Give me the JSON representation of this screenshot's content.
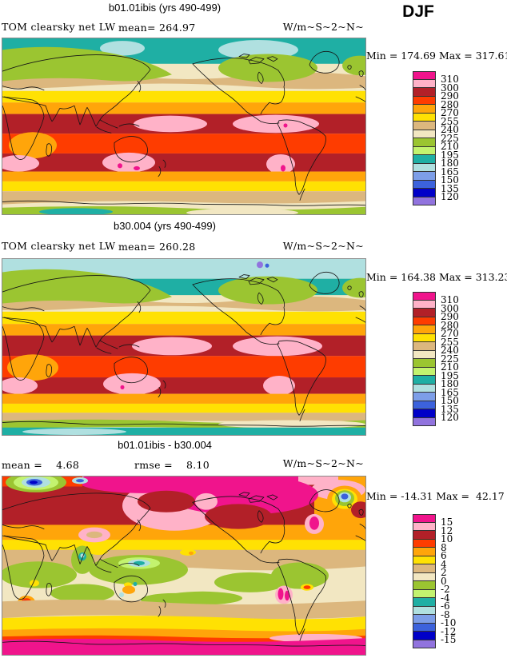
{
  "header": {
    "season": "DJF"
  },
  "palette_top_to_bottom": [
    "#F0148C",
    "#FFB2C8",
    "#B22028",
    "#FE3C00",
    "#FFA50A",
    "#FFE103",
    "#DCB77E",
    "#F2E7C2",
    "#9BC531",
    "#C3F36F",
    "#1FAFA4",
    "#B0E0E0",
    "#7D9EE8",
    "#3C62DC",
    "#0000C8",
    "#9173DE"
  ],
  "panels": [
    {
      "title": "b01.01ibis (yrs 490-499)",
      "field_label": "TOM clearsky net LW",
      "mean_label": "mean= 264.97",
      "units": "W/m~S~2~N~",
      "minmax": "Min = 174.69 Max = 317.61",
      "legend_labels": [
        "310",
        "300",
        "290",
        "280",
        "270",
        "255",
        "240",
        "225",
        "210",
        "195",
        "180",
        "165",
        "150",
        "135",
        "120"
      ]
    },
    {
      "title": "b30.004 (yrs 490-499)",
      "field_label": "TOM clearsky net LW",
      "mean_label": "mean= 260.28",
      "units": "W/m~S~2~N~",
      "minmax": "Min = 164.38 Max = 313.23",
      "legend_labels": [
        "310",
        "300",
        "290",
        "280",
        "270",
        "255",
        "240",
        "225",
        "210",
        "195",
        "180",
        "165",
        "150",
        "135",
        "120"
      ]
    },
    {
      "title": "b01.01ibis - b30.004",
      "mean_label": "mean =    4.68",
      "rmse_label": "rmse =    8.10",
      "units": "W/m~S~2~N~",
      "minmax": "Min = -14.31 Max =  42.17",
      "legend_labels": [
        "15",
        "12",
        "10",
        "8",
        "6",
        "4",
        "2",
        "0",
        "-2",
        "-4",
        "-6",
        "-8",
        "-10",
        "-12",
        "-15"
      ]
    }
  ],
  "chart_data": [
    {
      "type": "heatmap",
      "title": "b01.01ibis (yrs 490-499)",
      "subtitle": "TOM clearsky net LW",
      "season": "DJF",
      "units": "W/m^2",
      "projection": "global latitude-longitude map, 0E-360E",
      "mean": 264.97,
      "min": 174.69,
      "max": 317.61,
      "contour_levels": [
        120,
        135,
        150,
        165,
        180,
        195,
        210,
        225,
        240,
        255,
        270,
        280,
        290,
        300,
        310
      ],
      "palette_low_to_high": [
        "#9173DE",
        "#0000C8",
        "#3C62DC",
        "#7D9EE8",
        "#B0E0E0",
        "#1FAFA4",
        "#C3F36F",
        "#9BC531",
        "#F2E7C2",
        "#DCB77E",
        "#FFE103",
        "#FFA50A",
        "#FE3C00",
        "#B22028",
        "#FFB2C8",
        "#F0148C"
      ],
      "pattern": "high values (~280-310) in tropics, low values (~165-195) at poles"
    },
    {
      "type": "heatmap",
      "title": "b30.004 (yrs 490-499)",
      "subtitle": "TOM clearsky net LW",
      "season": "DJF",
      "units": "W/m^2",
      "projection": "global latitude-longitude map, 0E-360E",
      "mean": 260.28,
      "min": 164.38,
      "max": 313.23,
      "contour_levels": [
        120,
        135,
        150,
        165,
        180,
        195,
        210,
        225,
        240,
        255,
        270,
        280,
        290,
        300,
        310
      ],
      "palette_low_to_high": [
        "#9173DE",
        "#0000C8",
        "#3C62DC",
        "#7D9EE8",
        "#B0E0E0",
        "#1FAFA4",
        "#C3F36F",
        "#9BC531",
        "#F2E7C2",
        "#DCB77E",
        "#FFE103",
        "#FFA50A",
        "#FE3C00",
        "#B22028",
        "#FFB2C8",
        "#F0148C"
      ],
      "pattern": "high values (~280-300) in tropics, low values (~165-195) at poles"
    },
    {
      "type": "heatmap",
      "title": "b01.01ibis - b30.004",
      "season": "DJF",
      "units": "W/m^2",
      "projection": "global latitude-longitude map, 0E-360E",
      "mean": 4.68,
      "rmse": 8.1,
      "min": -14.31,
      "max": 42.17,
      "contour_levels": [
        -15,
        -12,
        -10,
        -8,
        -6,
        -4,
        -2,
        0,
        2,
        4,
        6,
        8,
        10,
        12,
        15
      ],
      "palette_low_to_high": [
        "#9173DE",
        "#0000C8",
        "#3C62DC",
        "#7D9EE8",
        "#B0E0E0",
        "#1FAFA4",
        "#C3F36F",
        "#9BC531",
        "#F2E7C2",
        "#DCB77E",
        "#FFE103",
        "#FFA50A",
        "#FE3C00",
        "#B22028",
        "#FFB2C8",
        "#F0148C"
      ],
      "pattern": "large positive differences (>15) over Arctic and Antarctic, small near-zero differences in tropics"
    }
  ]
}
